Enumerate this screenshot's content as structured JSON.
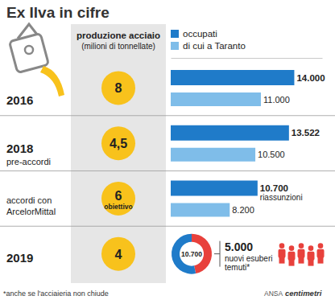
{
  "chart_data": [
    {
      "type": "bar",
      "orientation": "horizontal",
      "title": "Ex Ilva in cifre",
      "categories": [
        "2016",
        "2018\npre-accordi",
        "accordi con\nArcelorMittal",
        "2019"
      ],
      "series": [
        {
          "name": "occupati",
          "color": "#1f7bc9",
          "values": [
            14000,
            13522,
            10700,
            null
          ],
          "value_labels": [
            "14.000",
            "13.522",
            "10.700",
            null
          ],
          "annotations": [
            null,
            null,
            "riassunzioni",
            null
          ]
        },
        {
          "name": "di cui a Taranto",
          "color": "#7fbde9",
          "values": [
            11000,
            10500,
            8200,
            null
          ],
          "value_labels": [
            "11.000",
            "10.500",
            "8.200",
            null
          ]
        }
      ],
      "xlim": [
        2900,
        16500
      ],
      "xticks": [],
      "tick_labels": false,
      "data_labels": true,
      "production": {
        "title": "produzione acciaio\n(milioni di tonnellate)",
        "values": [
          8,
          4.5,
          6,
          4
        ],
        "value_labels": [
          "8",
          "4,5",
          "6",
          "4"
        ],
        "notes": [
          null,
          null,
          "obiettivo",
          null
        ],
        "color": "#f8c21c"
      },
      "footnote": "*anche se l'acciaieria non chiude",
      "source": [
        "ANSA",
        "centimetri"
      ]
    },
    {
      "type": "donut",
      "total": 10700,
      "total_label": "10.700",
      "values": [
        5000
      ],
      "value_labels": [
        "5.000"
      ],
      "label": "nuovi esuberi\ntemuti*",
      "colors": [
        "#e8413c",
        "#1f7bc9"
      ]
    }
  ]
}
